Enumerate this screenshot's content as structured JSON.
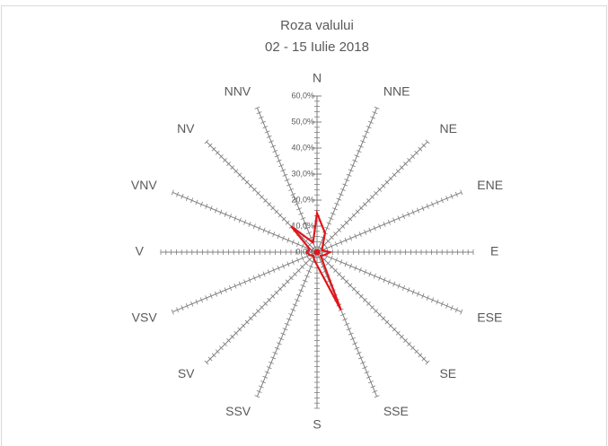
{
  "chart_data": {
    "type": "radar",
    "title": "Roza valului",
    "subtitle": "02 - 15 Iulie 2018",
    "categories": [
      "N",
      "NNE",
      "NE",
      "ENE",
      "E",
      "ESE",
      "SE",
      "SSE",
      "S",
      "SSV",
      "SV",
      "VSV",
      "V",
      "VNV",
      "NV",
      "NNV"
    ],
    "values": [
      15,
      8,
      3,
      2,
      5,
      3,
      2,
      24,
      5,
      3,
      2,
      3,
      4,
      3,
      14,
      4
    ],
    "color": "#e0161b",
    "ylim": [
      0,
      60
    ],
    "yticks": [
      {
        "value": 0,
        "label": "0,0%"
      },
      {
        "value": 10,
        "label": "10,0%"
      },
      {
        "value": 20,
        "label": "20,0%"
      },
      {
        "value": 30,
        "label": "30,0%"
      },
      {
        "value": 40,
        "label": "40,0%"
      },
      {
        "value": 50,
        "label": "50,0%"
      },
      {
        "value": 60,
        "label": "60,0%"
      }
    ]
  }
}
